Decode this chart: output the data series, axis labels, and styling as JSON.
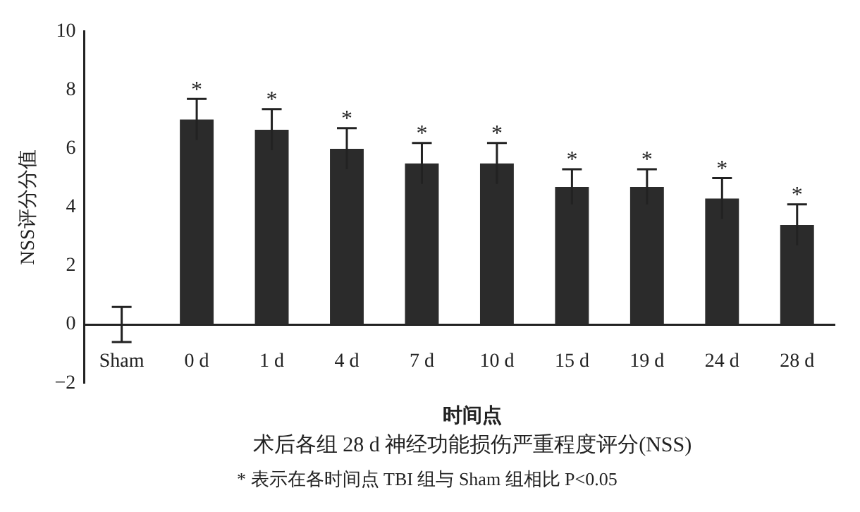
{
  "chart_data": {
    "type": "bar",
    "title": "术后各组 28 d 神经功能损伤严重程度评分(NSS)",
    "xlabel": "时间点",
    "ylabel": "NSS评分分值",
    "categories": [
      "Sham",
      "0 d",
      "1 d",
      "4 d",
      "7 d",
      "10 d",
      "15 d",
      "19 d",
      "24 d",
      "28 d"
    ],
    "values": [
      0,
      7.0,
      6.65,
      6.0,
      5.5,
      5.5,
      4.7,
      4.7,
      4.3,
      3.4
    ],
    "errors": [
      0.6,
      0.7,
      0.7,
      0.7,
      0.7,
      0.7,
      0.6,
      0.6,
      0.7,
      0.7
    ],
    "color": "#2b2b2b",
    "ylim": [
      -2,
      10
    ],
    "yticks": [
      -2,
      0,
      2,
      4,
      6,
      8,
      10
    ],
    "grid": false,
    "legend": false,
    "annotations": [
      {
        "text": "*",
        "x": "0 d",
        "y": 7.7
      },
      {
        "text": "*",
        "x": "1 d",
        "y": 7.35
      },
      {
        "text": "*",
        "x": "4 d",
        "y": 6.7
      },
      {
        "text": "*",
        "x": "7 d",
        "y": 6.2
      },
      {
        "text": "*",
        "x": "10 d",
        "y": 6.2
      },
      {
        "text": "*",
        "x": "15 d",
        "y": 5.3
      },
      {
        "text": "*",
        "x": "19 d",
        "y": 5.3
      },
      {
        "text": "*",
        "x": "24 d",
        "y": 5.0
      },
      {
        "text": "*",
        "x": "28 d",
        "y": 4.1
      },
      "* 表示在各时间点 TBI 组与 Sham 组相比 P<0.05"
    ]
  }
}
